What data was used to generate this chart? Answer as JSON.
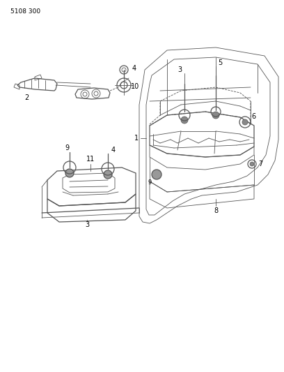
{
  "title": "5108 300",
  "bg_color": "#ffffff",
  "line_color": "#555555",
  "text_color": "#000000",
  "title_fontsize": 6.5,
  "label_fontsize": 7,
  "fig_width": 4.08,
  "fig_height": 5.33,
  "dpi": 100
}
